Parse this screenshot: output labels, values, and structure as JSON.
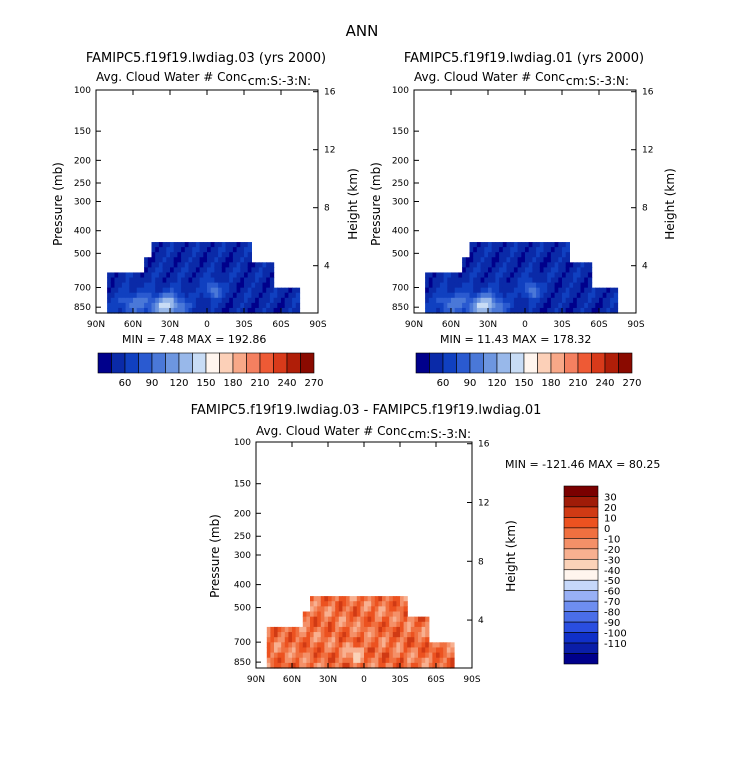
{
  "figure": {
    "season": "ANN"
  },
  "palettes": {
    "abs": [
      "#00008b",
      "#0a2aa8",
      "#1040c0",
      "#2a5ad0",
      "#4a78d8",
      "#6d96e0",
      "#98b8ea",
      "#c8dcf5",
      "#fff5ee",
      "#fcd0b8",
      "#f8a888",
      "#f48060",
      "#ee5a35",
      "#d83a1a",
      "#b01e08",
      "#8a0a00"
    ],
    "diff": [
      "#00008b",
      "#0a1ea8",
      "#1030c8",
      "#2a4ee0",
      "#4a6ee8",
      "#6e8ef0",
      "#98b0f5",
      "#c6d8fa",
      "#fff5ee",
      "#fbd2b8",
      "#f8b090",
      "#f49068",
      "#f07040",
      "#ec5220",
      "#d03a14",
      "#a01c08",
      "#7a0000"
    ]
  },
  "chart_data": [
    {
      "type": "heatmap",
      "title": "FAMIPC5.f19f19.lwdiag.03 (yrs 2000)",
      "subtitle_left": "Avg. Cloud Water # Conc.",
      "subtitle_right": "cm:S:-3:N:",
      "ylabel": "Pressure (mb)",
      "ylabel_right": "Height (km)",
      "x_ticks": [
        "90N",
        "60N",
        "30N",
        "0",
        "30S",
        "60S",
        "90S"
      ],
      "y_ticks": [
        "100",
        "150",
        "200",
        "250",
        "300",
        "400",
        "500",
        "700",
        "850"
      ],
      "height_ticks": [
        "16",
        "12",
        "8",
        "4"
      ],
      "stats": "MIN =     7.48   MAX =  192.86",
      "colorbar_labels": [
        "60",
        "90",
        "120",
        "150",
        "180",
        "210",
        "240",
        "270"
      ]
    },
    {
      "type": "heatmap",
      "title": "FAMIPC5.f19f19.lwdiag.01 (yrs 2000)",
      "subtitle_left": "Avg. Cloud Water # Conc.",
      "subtitle_right": "cm:S:-3:N:",
      "ylabel": "Pressure (mb)",
      "ylabel_right": "Height (km)",
      "x_ticks": [
        "90N",
        "60N",
        "30N",
        "0",
        "30S",
        "60S",
        "90S"
      ],
      "y_ticks": [
        "100",
        "150",
        "200",
        "250",
        "300",
        "400",
        "500",
        "700",
        "850"
      ],
      "height_ticks": [
        "16",
        "12",
        "8",
        "4"
      ],
      "stats": "MIN =    11.43   MAX =  178.32",
      "colorbar_labels": [
        "60",
        "90",
        "120",
        "150",
        "180",
        "210",
        "240",
        "270"
      ]
    },
    {
      "type": "heatmap",
      "title": "FAMIPC5.f19f19.lwdiag.03 - FAMIPC5.f19f19.lwdiag.01",
      "subtitle_left": "Avg. Cloud Water # Conc.",
      "subtitle_right": "cm:S:-3:N:",
      "ylabel": "Pressure (mb)",
      "ylabel_right": "Height (km)",
      "x_ticks": [
        "90N",
        "60N",
        "30N",
        "0",
        "30S",
        "60S",
        "90S"
      ],
      "y_ticks": [
        "100",
        "150",
        "200",
        "250",
        "300",
        "400",
        "500",
        "700",
        "850"
      ],
      "height_ticks": [
        "16",
        "12",
        "8",
        "4"
      ],
      "stats": "MIN = -121.46   MAX =  80.25",
      "colorbar_labels": [
        "30",
        "20",
        "10",
        "0",
        "-10",
        "-20",
        "-30",
        "-40",
        "-50",
        "-60",
        "-70",
        "-80",
        "-90",
        "-100",
        "-110"
      ]
    }
  ]
}
